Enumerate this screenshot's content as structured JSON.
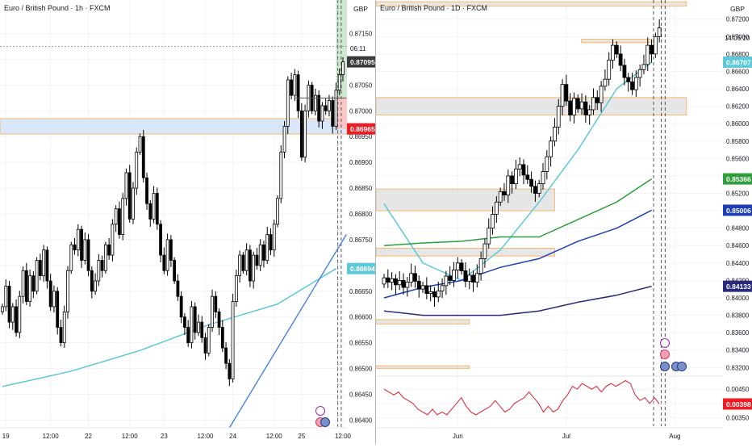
{
  "colors": {
    "up": "#ffffff",
    "down": "#000000",
    "wick": "#000000",
    "zone_fill": "#d9e7fb",
    "zone_border": "#f7b96b",
    "grey_zone": "#e6e6e6",
    "ma_cyan": "#5cc8d8",
    "ma_green": "#2e9e3a",
    "ma_blue": "#1e3fb4",
    "ma_navy": "#2a2a7a",
    "osc_red": "#d8323c",
    "trend_blue": "#3b7be0",
    "price_red": "#ee1c25",
    "price_dark": "#3a3a3a",
    "green_zone": "#c8e6c9",
    "red_zone": "#fbc2c2"
  },
  "left": {
    "title": "Euro / British Pound · 1h · FXCM",
    "currency": "GBP",
    "countdown": "06:11",
    "price_labels": [
      {
        "name": "last-price",
        "text": "0.87095",
        "value": 0.87095,
        "bg": "#3a3a3a"
      },
      {
        "name": "stop-level",
        "text": "0.86965",
        "value": 0.86965,
        "bg": "#ee1c25"
      },
      {
        "name": "ma-value",
        "text": "0.86694",
        "value": 0.86694,
        "bg": "#5cc8d8"
      }
    ],
    "time_labels": [
      "19",
      "12:00",
      "22",
      "12:00",
      "23",
      "12:00",
      "24",
      "12:00",
      "25",
      "12:00"
    ],
    "chart_data": {
      "type": "candlestick",
      "ylim": [
        0.86385,
        0.87215
      ],
      "yticks": [
        0.8715,
        0.871,
        0.8705,
        0.87,
        0.8695,
        0.869,
        0.8685,
        0.868,
        0.8675,
        0.867,
        0.8665,
        0.866,
        0.8655,
        0.865,
        0.8645,
        0.864
      ],
      "ytick_labels": [
        "0.87150",
        "0.87100",
        "0.87050",
        "0.87000",
        "0.86950",
        "0.86900",
        "0.86850",
        "0.86800",
        "0.86750",
        "0.86700",
        "0.86650",
        "0.86600",
        "0.86550",
        "0.86500",
        "0.86450",
        "0.86400"
      ],
      "x_count": 100,
      "xtick_index": [
        1,
        14,
        25,
        37,
        47,
        59,
        67,
        79,
        87,
        99
      ],
      "close": [
        0.8662,
        0.8666,
        0.8659,
        0.8662,
        0.8657,
        0.8664,
        0.8669,
        0.8663,
        0.8668,
        0.8665,
        0.8671,
        0.8668,
        0.8673,
        0.8667,
        0.8662,
        0.8665,
        0.8658,
        0.8655,
        0.8661,
        0.8669,
        0.8674,
        0.8673,
        0.8677,
        0.8671,
        0.8675,
        0.8669,
        0.8665,
        0.8667,
        0.8671,
        0.8669,
        0.8674,
        0.8672,
        0.8678,
        0.8681,
        0.8676,
        0.8683,
        0.8688,
        0.8679,
        0.8685,
        0.8692,
        0.8695,
        0.8687,
        0.8682,
        0.8679,
        0.8684,
        0.8678,
        0.8672,
        0.8669,
        0.8675,
        0.8671,
        0.8667,
        0.8664,
        0.866,
        0.8658,
        0.8655,
        0.8662,
        0.8657,
        0.8659,
        0.8656,
        0.8653,
        0.8658,
        0.8664,
        0.8661,
        0.8658,
        0.8654,
        0.8651,
        0.8648,
        0.8663,
        0.8668,
        0.8672,
        0.8669,
        0.8673,
        0.8667,
        0.8672,
        0.867,
        0.8674,
        0.8671,
        0.8676,
        0.8673,
        0.8678,
        0.8683,
        0.8692,
        0.8697,
        0.8706,
        0.8703,
        0.8707,
        0.87,
        0.8691,
        0.87,
        0.8705,
        0.87,
        0.8703,
        0.8698,
        0.8701,
        0.87,
        0.8702,
        0.8697,
        0.8704,
        0.8707,
        0.87095
      ],
      "wick_range": 0.00012,
      "ma_curve": {
        "x": [
          0,
          20,
          40,
          60,
          80,
          97
        ],
        "y": [
          0.86465,
          0.86495,
          0.86535,
          0.86585,
          0.86625,
          0.86694
        ]
      },
      "trendline": {
        "x": [
          66,
          100
        ],
        "y": [
          0.86385,
          0.8676
        ]
      },
      "zone": {
        "y1": 0.86985,
        "y2": 0.86955
      },
      "position": {
        "x1": 97,
        "x2": 100,
        "entry": 0.87025,
        "target": 0.87215,
        "stop": 0.86965
      },
      "hlines": [
        {
          "y": 0.87125,
          "name": "dotted-level"
        }
      ],
      "vlines": [
        {
          "x": 97.5,
          "name": "now-dashed-1"
        },
        {
          "x": 98.5,
          "name": "now-dashed-2"
        }
      ],
      "crosshair": {
        "x": 97.5,
        "y": 0.87125
      }
    }
  },
  "right": {
    "title": "Euro / British Pound · 1D · FXCM",
    "currency": "GBP",
    "countdown": "14:06:10",
    "price_labels": [
      {
        "name": "ema-cyan-value",
        "text": "0.86707",
        "value": 0.86707,
        "bg": "#5cc8d8"
      },
      {
        "name": "ema-green-value",
        "text": "0.85366",
        "value": 0.85366,
        "bg": "#2e9e3a"
      },
      {
        "name": "ema-blue-value",
        "text": "0.85006",
        "value": 0.85006,
        "bg": "#1e3fb4"
      },
      {
        "name": "ema-navy-value",
        "text": "0.84133",
        "value": 0.84133,
        "bg": "#2a2a7a"
      }
    ],
    "osc_label": {
      "text": "0.00398",
      "value": 0.00398,
      "bg": "#ee1c25"
    },
    "time_labels": [
      "Jun",
      "Jul",
      "Aug"
    ],
    "chart_data": {
      "type": "candlestick",
      "ylim": [
        0.8311,
        0.8742
      ],
      "yticks": [
        0.872,
        0.87,
        0.868,
        0.866,
        0.864,
        0.862,
        0.86,
        0.858,
        0.856,
        0.854,
        0.852,
        0.85,
        0.848,
        0.846,
        0.844,
        0.842,
        0.84,
        0.838,
        0.836,
        0.834,
        0.832
      ],
      "ytick_labels": [
        "0.87200",
        "0.87000",
        "0.86800",
        "0.86600",
        "0.86400",
        "0.86200",
        "0.86000",
        "0.85800",
        "0.85600",
        "0.85400",
        "0.85200",
        "0.85000",
        "0.84800",
        "0.84600",
        "0.84400",
        "0.84200",
        "0.84000",
        "0.83800",
        "0.83600",
        "0.83400",
        "0.83200"
      ],
      "x_count": 78,
      "xtick_index": [
        19,
        47,
        75
      ],
      "close": [
        0.8423,
        0.8418,
        0.8422,
        0.8415,
        0.842,
        0.8412,
        0.8418,
        0.8428,
        0.8419,
        0.841,
        0.8414,
        0.8405,
        0.8407,
        0.8401,
        0.8408,
        0.8414,
        0.8425,
        0.842,
        0.8432,
        0.844,
        0.8431,
        0.8419,
        0.8426,
        0.8418,
        0.8428,
        0.8445,
        0.8462,
        0.848,
        0.8496,
        0.851,
        0.8522,
        0.8518,
        0.854,
        0.8531,
        0.8548,
        0.8553,
        0.8541,
        0.8536,
        0.8528,
        0.852,
        0.8531,
        0.8545,
        0.8562,
        0.858,
        0.8596,
        0.862,
        0.8645,
        0.8626,
        0.861,
        0.8629,
        0.8617,
        0.8625,
        0.861,
        0.8616,
        0.863,
        0.8624,
        0.8643,
        0.8651,
        0.8673,
        0.869,
        0.868,
        0.8667,
        0.8653,
        0.8648,
        0.8639,
        0.8653,
        0.8662,
        0.8668,
        0.869,
        0.868,
        0.87,
        0.871
      ],
      "wick_range": 0.0009,
      "moving_averages": [
        {
          "name": "ma-cyan",
          "color": "#5cc8d8",
          "x": [
            0,
            10,
            20,
            30,
            40,
            50,
            60,
            69
          ],
          "y": [
            0.8508,
            0.844,
            0.842,
            0.8455,
            0.851,
            0.857,
            0.864,
            0.86707
          ]
        },
        {
          "name": "ma-green",
          "color": "#2e9e3a",
          "x": [
            0,
            10,
            20,
            30,
            40,
            50,
            60,
            69
          ],
          "y": [
            0.846,
            0.8463,
            0.8465,
            0.847,
            0.847,
            0.849,
            0.851,
            0.85366
          ]
        },
        {
          "name": "ma-blue",
          "color": "#1e3fb4",
          "x": [
            0,
            10,
            20,
            30,
            40,
            50,
            60,
            69
          ],
          "y": [
            0.84,
            0.8412,
            0.842,
            0.8435,
            0.8445,
            0.8465,
            0.848,
            0.85006
          ]
        },
        {
          "name": "ma-navy",
          "color": "#2a2a7a",
          "x": [
            0,
            10,
            20,
            30,
            40,
            50,
            60,
            69
          ],
          "y": [
            0.8385,
            0.838,
            0.838,
            0.838,
            0.8385,
            0.8395,
            0.8403,
            0.84133
          ]
        }
      ],
      "zones": [
        {
          "name": "zone-top",
          "y1": 0.874,
          "y2": 0.8735,
          "x1": 0,
          "x2": 78
        },
        {
          "name": "zone-1",
          "y1": 0.863,
          "y2": 0.861,
          "x1": 0,
          "x2": 78
        },
        {
          "name": "zone-2",
          "y1": 0.8525,
          "y2": 0.85,
          "x1": 0,
          "x2": 44
        },
        {
          "name": "zone-3",
          "y1": 0.8457,
          "y2": 0.8448,
          "x1": 0,
          "x2": 44
        },
        {
          "name": "zone-4",
          "y1": 0.8375,
          "y2": 0.837,
          "x1": 0,
          "x2": 22
        },
        {
          "name": "zone-5",
          "y1": 0.8322,
          "y2": 0.8319,
          "x1": 0,
          "x2": 22
        },
        {
          "name": "zone-6",
          "y1": 0.8697,
          "y2": 0.8693,
          "x1": 53,
          "x2": 69
        }
      ],
      "vlines": [
        {
          "x": 69.5,
          "name": "now-dashed-1"
        },
        {
          "x": 71.5,
          "name": "now-dashed-2"
        },
        {
          "x": 72.5,
          "name": "now-dashed-3"
        }
      ],
      "oscillator": {
        "ylim": [
          0.0032,
          0.0049
        ],
        "ticks": [
          0.0045,
          0.004,
          0.0035
        ],
        "tick_labels": [
          "0.00450",
          "0.00400",
          "0.00350"
        ],
        "values": [
          0.0045,
          0.0044,
          0.0043,
          0.0044,
          0.0042,
          0.0041,
          0.004,
          0.0038,
          0.0037,
          0.0036,
          0.0038,
          0.0036,
          0.0037,
          0.0036,
          0.0038,
          0.004,
          0.0042,
          0.0039,
          0.0037,
          0.0036,
          0.0037,
          0.0038,
          0.0039,
          0.0041,
          0.0039,
          0.0037,
          0.0038,
          0.004,
          0.0041,
          0.0042,
          0.0044,
          0.0042,
          0.004,
          0.0037,
          0.0039,
          0.0037,
          0.0038,
          0.0041,
          0.0043,
          0.0046,
          0.0045,
          0.0047,
          0.0046,
          0.0045,
          0.0046,
          0.0044,
          0.0046,
          0.0047,
          0.0046,
          0.0047,
          0.0048,
          0.0047,
          0.0043,
          0.0041,
          0.0042,
          0.004,
          0.0042,
          0.00398
        ]
      }
    }
  }
}
